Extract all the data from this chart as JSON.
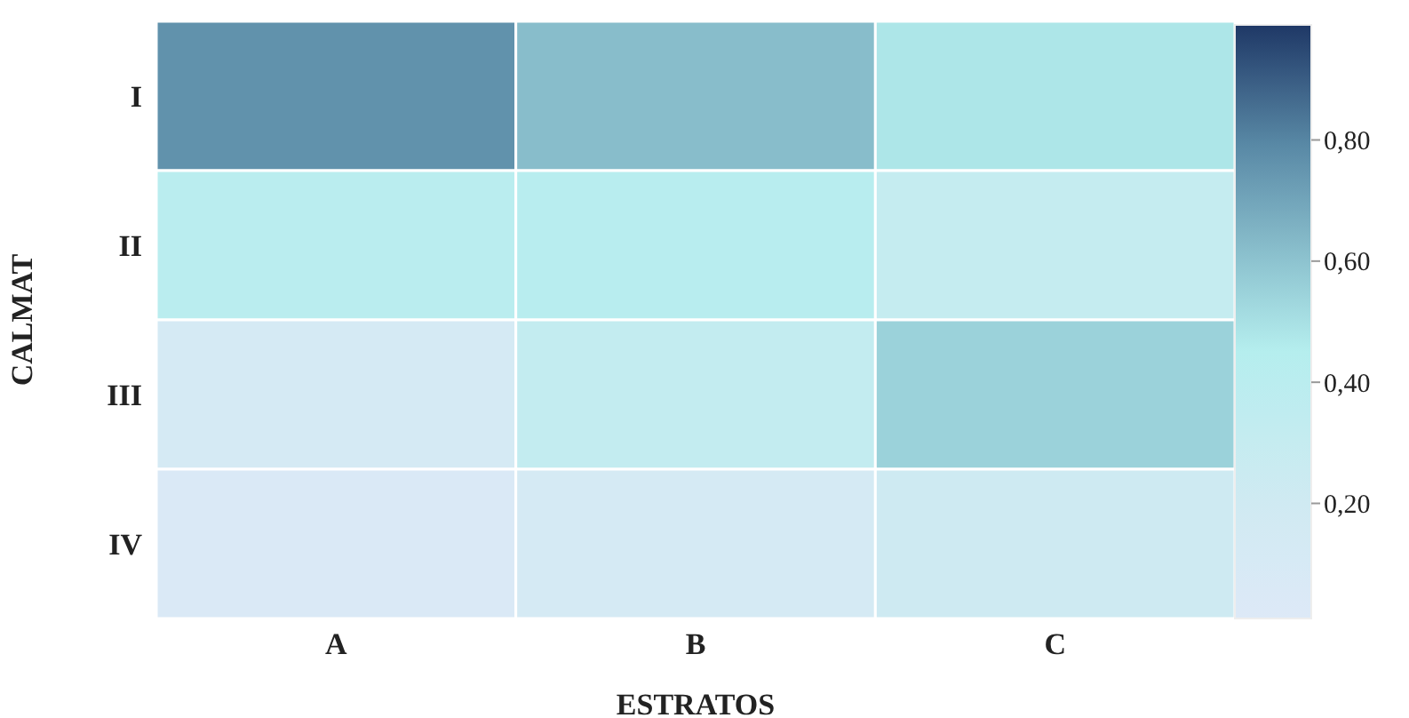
{
  "chart_data": {
    "type": "heatmap",
    "xlabel": "ESTRATOS",
    "ylabel": "CALMAT",
    "categories": [
      "A",
      "B",
      "C"
    ],
    "y_categories": [
      "I",
      "II",
      "III",
      "IV"
    ],
    "cells": [
      [
        0.76,
        0.62,
        0.48
      ],
      [
        0.4,
        0.42,
        0.3
      ],
      [
        0.12,
        0.32,
        0.55
      ],
      [
        0.05,
        0.12,
        0.22
      ]
    ],
    "clim": [
      0.01,
      0.99
    ],
    "cticks": [
      {
        "value": 0.2,
        "label": "0,20"
      },
      {
        "value": 0.4,
        "label": "0,40"
      },
      {
        "value": 0.6,
        "label": "0,60"
      },
      {
        "value": 0.8,
        "label": "0,80"
      }
    ]
  }
}
